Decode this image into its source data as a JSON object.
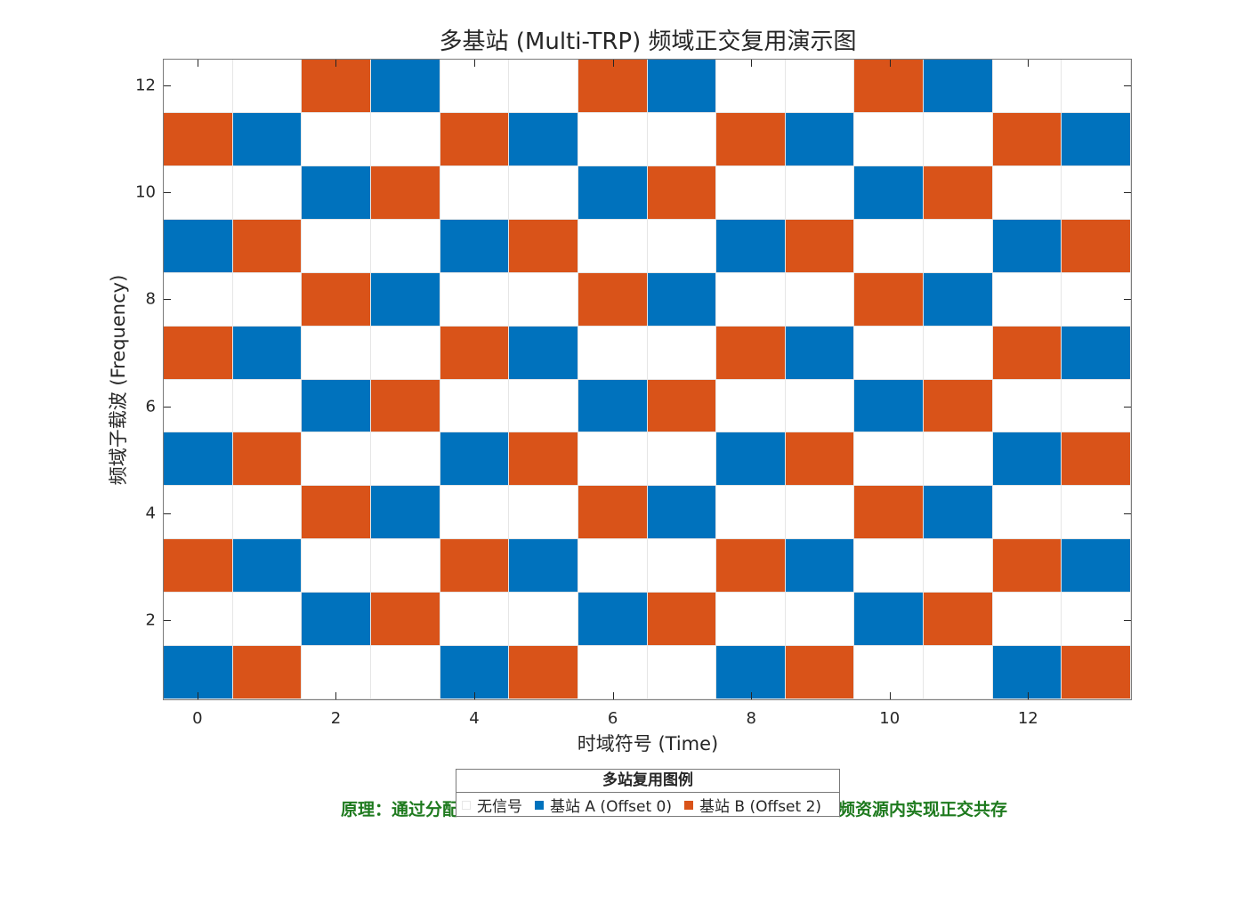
{
  "chart_data": {
    "type": "heatmap",
    "title": "多基站 (Multi-TRP) 频域正交复用演示图",
    "xlabel": "时域符号 (Time)",
    "ylabel": "频域子载波 (Frequency)",
    "x": [
      0,
      1,
      2,
      3,
      4,
      5,
      6,
      7,
      8,
      9,
      10,
      11,
      12,
      13
    ],
    "y": [
      1,
      2,
      3,
      4,
      5,
      6,
      7,
      8,
      9,
      10,
      11,
      12
    ],
    "xlim": [
      -0.5,
      13.5
    ],
    "ylim": [
      0.5,
      12.5
    ],
    "xticks": [
      0,
      2,
      4,
      6,
      8,
      10,
      12
    ],
    "yticks": [
      2,
      4,
      6,
      8,
      10,
      12
    ],
    "grid": true,
    "value_legend": {
      "0": "无信号",
      "1": "基站 A (Offset 0)",
      "2": "基站 B (Offset 2)"
    },
    "colors": {
      "0": "#ffffff",
      "1": "#0072bd",
      "2": "#d95319"
    },
    "matrix_top_to_bottom": [
      [
        0,
        0,
        2,
        1,
        0,
        0,
        2,
        1,
        0,
        0,
        2,
        1,
        0,
        0
      ],
      [
        2,
        1,
        0,
        0,
        2,
        1,
        0,
        0,
        2,
        1,
        0,
        0,
        2,
        1
      ],
      [
        0,
        0,
        1,
        2,
        0,
        0,
        1,
        2,
        0,
        0,
        1,
        2,
        0,
        0
      ],
      [
        1,
        2,
        0,
        0,
        1,
        2,
        0,
        0,
        1,
        2,
        0,
        0,
        1,
        2
      ],
      [
        0,
        0,
        2,
        1,
        0,
        0,
        2,
        1,
        0,
        0,
        2,
        1,
        0,
        0
      ],
      [
        2,
        1,
        0,
        0,
        2,
        1,
        0,
        0,
        2,
        1,
        0,
        0,
        2,
        1
      ],
      [
        0,
        0,
        1,
        2,
        0,
        0,
        1,
        2,
        0,
        0,
        1,
        2,
        0,
        0
      ],
      [
        1,
        2,
        0,
        0,
        1,
        2,
        0,
        0,
        1,
        2,
        0,
        0,
        1,
        2
      ],
      [
        0,
        0,
        2,
        1,
        0,
        0,
        2,
        1,
        0,
        0,
        2,
        1,
        0,
        0
      ],
      [
        2,
        1,
        0,
        0,
        2,
        1,
        0,
        0,
        2,
        1,
        0,
        0,
        2,
        1
      ],
      [
        0,
        0,
        1,
        2,
        0,
        0,
        1,
        2,
        0,
        0,
        1,
        2,
        0,
        0
      ],
      [
        1,
        2,
        0,
        0,
        1,
        2,
        0,
        0,
        1,
        2,
        0,
        0,
        1,
        2
      ]
    ],
    "legend": {
      "title": "多站复用图例",
      "position": "below plot, center",
      "entries": [
        {
          "label": "无信号",
          "color": "#ffffff"
        },
        {
          "label": "基站 A (Offset 0)",
          "color": "#0072bd"
        },
        {
          "label": "基站 B (Offset 2)",
          "color": "#d95319"
        }
      ]
    },
    "annotation": {
      "text_visible_left": "原理：通过分配",
      "text_visible_right": "频资源内实现正交共存",
      "color": "#1e7a1e"
    }
  }
}
